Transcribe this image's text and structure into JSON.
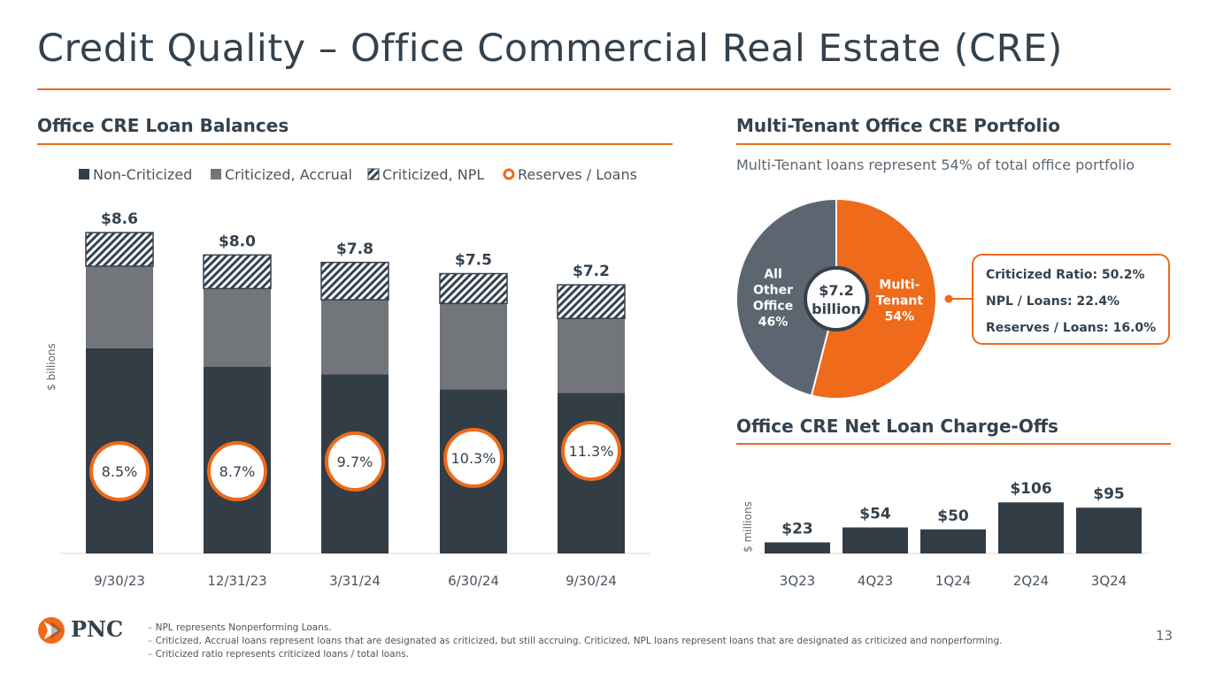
{
  "page": {
    "title": "Credit Quality – Office Commercial Real Estate (CRE)",
    "page_number": "13",
    "logo_text": "PNC",
    "footnotes": [
      "NPL represents Nonperforming Loans.",
      "Criticized, Accrual loans represent loans that are designated as criticized, but still accruing. Criticized, NPL loans represent loans that are designated as criticized and nonperforming.",
      "Criticized ratio represents criticized loans / total loans."
    ]
  },
  "colors": {
    "accent": "#ef6a1a",
    "non_criticized": "#323d46",
    "criticized_accrual": "#72767b",
    "hatch": "#34424e",
    "pie_other": "#5c6670"
  },
  "loan_balances": {
    "section_title": "Office CRE Loan Balances",
    "ylabel": "$ billions",
    "legend": {
      "non_criticized": "Non-Criticized",
      "criticized_accrual": "Criticized, Accrual",
      "criticized_npl": "Criticized, NPL",
      "reserves": "Reserves / Loans"
    }
  },
  "portfolio": {
    "section_title": "Multi-Tenant Office CRE Portfolio",
    "subtitle": "Multi-Tenant loans represent 54% of total office portfolio",
    "center_line1": "$7.2",
    "center_line2": "billion",
    "metrics": [
      "Criticized Ratio: 50.2%",
      "NPL / Loans: 22.4%",
      "Reserves / Loans: 16.0%"
    ]
  },
  "charge_offs": {
    "section_title": "Office CRE Net Loan Charge-Offs",
    "ylabel": "$ millions"
  },
  "chart_data": [
    {
      "type": "bar",
      "stacked": true,
      "title": "Office CRE Loan Balances",
      "ylabel": "$ billions",
      "categories": [
        "9/30/23",
        "12/31/23",
        "3/31/24",
        "6/30/24",
        "9/30/24"
      ],
      "series": [
        {
          "name": "Non-Criticized",
          "values": [
            5.5,
            5.0,
            4.8,
            4.4,
            4.3
          ]
        },
        {
          "name": "Criticized, Accrual",
          "values": [
            2.2,
            2.1,
            2.0,
            2.3,
            2.0
          ]
        },
        {
          "name": "Criticized, NPL",
          "values": [
            0.9,
            0.9,
            1.0,
            0.8,
            0.9
          ]
        }
      ],
      "totals": [
        8.6,
        8.0,
        7.8,
        7.5,
        7.2
      ],
      "total_labels": [
        "$8.6",
        "$8.0",
        "$7.8",
        "$7.5",
        "$7.2"
      ],
      "reserves_to_loans": [
        "8.5%",
        "8.7%",
        "9.7%",
        "10.3%",
        "11.3%"
      ],
      "reserves_values": [
        8.5,
        8.7,
        9.7,
        10.3,
        11.3
      ],
      "ylim": [
        0,
        9.5
      ]
    },
    {
      "type": "pie",
      "title": "Multi-Tenant Office CRE Portfolio",
      "slices": [
        {
          "label_lines": [
            "Multi-",
            "Tenant",
            "54%"
          ],
          "value": 54
        },
        {
          "label_lines": [
            "All",
            "Other",
            "Office",
            "46%"
          ],
          "value": 46
        }
      ],
      "total_label": "$7.2 billion"
    },
    {
      "type": "bar",
      "title": "Office CRE Net Loan Charge-Offs",
      "ylabel": "$ millions",
      "categories": [
        "3Q23",
        "4Q23",
        "1Q24",
        "2Q24",
        "3Q24"
      ],
      "values": [
        23,
        54,
        50,
        106,
        95
      ],
      "value_labels": [
        "$23",
        "$54",
        "$50",
        "$106",
        "$95"
      ],
      "ylim": [
        0,
        110
      ]
    }
  ]
}
